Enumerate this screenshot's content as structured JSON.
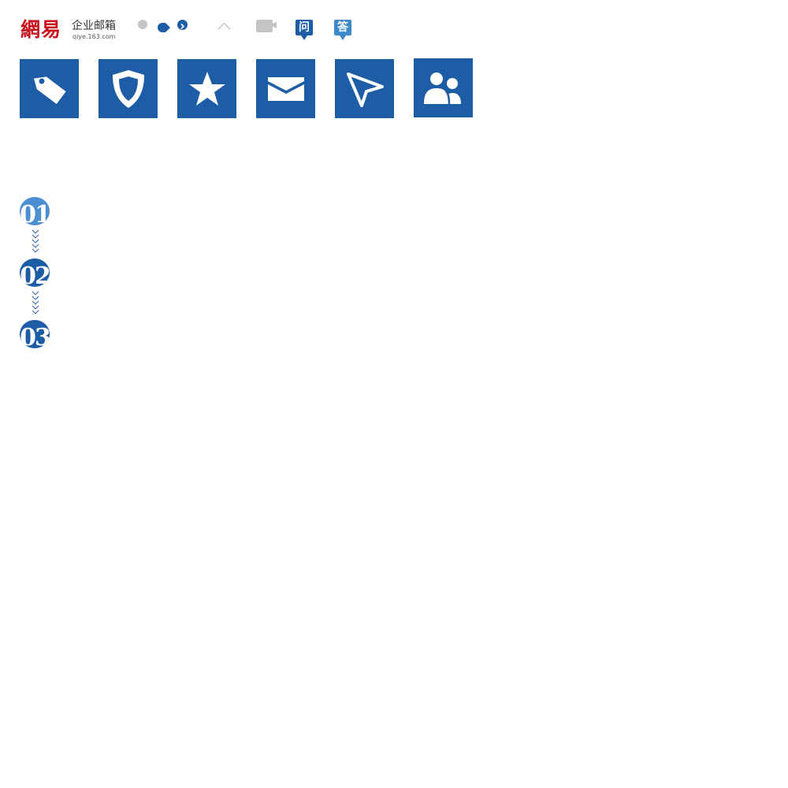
{
  "logo": {
    "brand": "網易",
    "title": "企业邮箱",
    "domain": "qiye.163.com"
  },
  "badges": {
    "ask": "问",
    "answer": "答"
  },
  "steps": [
    {
      "label": "01"
    },
    {
      "label": "02"
    },
    {
      "label": "03"
    }
  ],
  "icons": {
    "top": [
      "grey-dot-icon",
      "blue-tag-dot-icon",
      "chevron-right-circle-icon",
      "caret-up-icon",
      "video-camera-icon"
    ],
    "tiles": [
      "tag-icon",
      "shield-icon",
      "star-icon",
      "mail-icon",
      "send-icon",
      "users-icon"
    ]
  },
  "colors": {
    "primary": "#1d5da6",
    "light_primary": "#4b8fd0",
    "answer": "#3d88c6",
    "grey": "#c4c4c4",
    "brand_red": "#c8111d"
  }
}
